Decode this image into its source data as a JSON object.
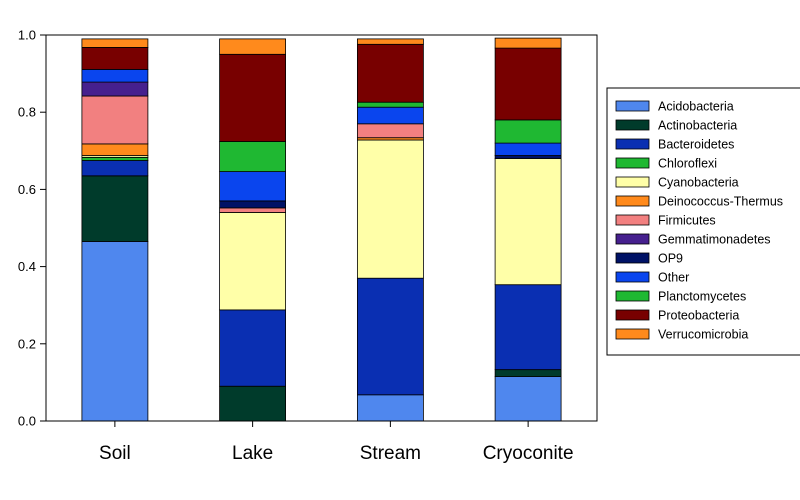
{
  "chart_data": {
    "type": "bar",
    "stacked": true,
    "categories": [
      "Soil",
      "Lake",
      "Stream",
      "Cryoconite"
    ],
    "ylim": [
      0,
      1.0
    ],
    "yticks": [
      "0.0",
      "0.2",
      "0.4",
      "0.6",
      "0.8",
      "1.0"
    ],
    "ytick_values": [
      0,
      0.2,
      0.4,
      0.6,
      0.8,
      1.0
    ],
    "grid": false,
    "legend_position": "right",
    "series": [
      {
        "name": "Acidobacteria",
        "color": "#4f87ee",
        "values": [
          0.465,
          0.0,
          0.068,
          0.115
        ]
      },
      {
        "name": "Actinobacteria",
        "color": "#003b2b",
        "values": [
          0.17,
          0.09,
          0.0,
          0.018
        ]
      },
      {
        "name": "Bacteroidetes",
        "color": "#0a2fb2",
        "values": [
          0.04,
          0.198,
          0.302,
          0.22
        ]
      },
      {
        "name": "Chloroflexi",
        "color": "#1fb832",
        "values": [
          0.008,
          0.0,
          0.0,
          0.0
        ]
      },
      {
        "name": "Cyanobacteria",
        "color": "#ffffa8",
        "values": [
          0.005,
          0.252,
          0.358,
          0.327
        ]
      },
      {
        "name": "Deinococcus-Thermus",
        "color": "#ff8a1c",
        "values": [
          0.03,
          0.0,
          0.006,
          0.0
        ]
      },
      {
        "name": "Firmicutes",
        "color": "#f28080",
        "values": [
          0.124,
          0.012,
          0.036,
          0.0
        ]
      },
      {
        "name": "Gemmatimonadetes",
        "color": "#46208e",
        "values": [
          0.036,
          0.0,
          0.0,
          0.0
        ]
      },
      {
        "name": "OP9",
        "color": "#001266",
        "values": [
          0.0,
          0.018,
          0.0,
          0.008
        ]
      },
      {
        "name": "Other",
        "color": "#0a45ee",
        "values": [
          0.033,
          0.076,
          0.043,
          0.032
        ]
      },
      {
        "name": "Planctomycetes",
        "color": "#1fb832",
        "values": [
          0.0,
          0.078,
          0.013,
          0.06
        ]
      },
      {
        "name": "Proteobacteria",
        "color": "#780000",
        "values": [
          0.057,
          0.226,
          0.15,
          0.186
        ]
      },
      {
        "name": "Verrucomicrobia",
        "color": "#ff8a1c",
        "values": [
          0.022,
          0.04,
          0.014,
          0.026
        ]
      }
    ]
  }
}
